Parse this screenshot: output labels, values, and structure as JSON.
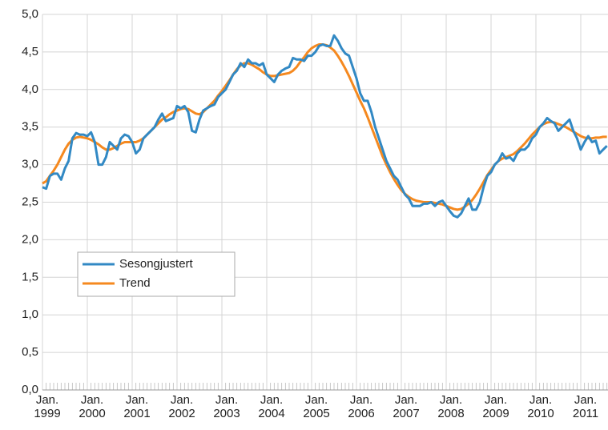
{
  "chart_data": {
    "type": "line",
    "categories": [
      "Jan.\n1999",
      null,
      null,
      null,
      null,
      null,
      null,
      null,
      null,
      null,
      null,
      null,
      "Jan.\n2000",
      null,
      null,
      null,
      null,
      null,
      null,
      null,
      null,
      null,
      null,
      null,
      "Jan.\n2001",
      null,
      null,
      null,
      null,
      null,
      null,
      null,
      null,
      null,
      null,
      null,
      "Jan.\n2002",
      null,
      null,
      null,
      null,
      null,
      null,
      null,
      null,
      null,
      null,
      null,
      "Jan.\n2003",
      null,
      null,
      null,
      null,
      null,
      null,
      null,
      null,
      null,
      null,
      null,
      "Jan.\n2004",
      null,
      null,
      null,
      null,
      null,
      null,
      null,
      null,
      null,
      null,
      null,
      "Jan.\n2005",
      null,
      null,
      null,
      null,
      null,
      null,
      null,
      null,
      null,
      null,
      null,
      "Jan.\n2006",
      null,
      null,
      null,
      null,
      null,
      null,
      null,
      null,
      null,
      null,
      null,
      "Jan.\n2007",
      null,
      null,
      null,
      null,
      null,
      null,
      null,
      null,
      null,
      null,
      null,
      "Jan.\n2008",
      null,
      null,
      null,
      null,
      null,
      null,
      null,
      null,
      null,
      null,
      null,
      "Jan.\n2009",
      null,
      null,
      null,
      null,
      null,
      null,
      null,
      null,
      null,
      null,
      null,
      "Jan.\n2010",
      null,
      null,
      null,
      null,
      null,
      null,
      null,
      null,
      null,
      null,
      null,
      "Jan.\n2011",
      null,
      null,
      null,
      null,
      null,
      null,
      null
    ],
    "series": [
      {
        "name": "Sesongjustert",
        "color": "#3289c4",
        "values": [
          2.7,
          2.68,
          2.85,
          2.88,
          2.88,
          2.8,
          2.95,
          3.05,
          3.35,
          3.42,
          3.4,
          3.4,
          3.38,
          3.43,
          3.3,
          3.0,
          3.0,
          3.1,
          3.3,
          3.25,
          3.2,
          3.35,
          3.4,
          3.38,
          3.3,
          3.15,
          3.2,
          3.35,
          3.4,
          3.45,
          3.5,
          3.6,
          3.68,
          3.58,
          3.6,
          3.62,
          3.78,
          3.75,
          3.78,
          3.7,
          3.45,
          3.43,
          3.6,
          3.72,
          3.75,
          3.78,
          3.8,
          3.9,
          3.95,
          4.0,
          4.1,
          4.2,
          4.25,
          4.35,
          4.3,
          4.4,
          4.35,
          4.35,
          4.32,
          4.35,
          4.2,
          4.15,
          4.1,
          4.2,
          4.25,
          4.28,
          4.3,
          4.42,
          4.4,
          4.4,
          4.38,
          4.45,
          4.45,
          4.5,
          4.58,
          4.6,
          4.58,
          4.58,
          4.72,
          4.65,
          4.55,
          4.48,
          4.45,
          4.3,
          4.15,
          3.95,
          3.85,
          3.85,
          3.7,
          3.5,
          3.35,
          3.2,
          3.05,
          2.95,
          2.85,
          2.8,
          2.7,
          2.6,
          2.55,
          2.45,
          2.45,
          2.45,
          2.48,
          2.48,
          2.5,
          2.45,
          2.5,
          2.52,
          2.45,
          2.38,
          2.32,
          2.3,
          2.35,
          2.45,
          2.55,
          2.4,
          2.4,
          2.5,
          2.7,
          2.85,
          2.9,
          3.0,
          3.05,
          3.15,
          3.08,
          3.1,
          3.05,
          3.15,
          3.2,
          3.2,
          3.25,
          3.35,
          3.4,
          3.5,
          3.55,
          3.62,
          3.58,
          3.55,
          3.45,
          3.5,
          3.55,
          3.6,
          3.45,
          3.35,
          3.2,
          3.3,
          3.38,
          3.3,
          3.32,
          3.15,
          3.2,
          3.25
        ]
      },
      {
        "name": "Trend",
        "color": "#f5891f",
        "values": [
          2.75,
          2.78,
          2.85,
          2.92,
          3.0,
          3.1,
          3.2,
          3.28,
          3.33,
          3.36,
          3.37,
          3.36,
          3.35,
          3.33,
          3.3,
          3.27,
          3.23,
          3.2,
          3.2,
          3.22,
          3.25,
          3.28,
          3.3,
          3.3,
          3.3,
          3.3,
          3.32,
          3.35,
          3.4,
          3.45,
          3.5,
          3.55,
          3.6,
          3.63,
          3.67,
          3.7,
          3.72,
          3.74,
          3.75,
          3.74,
          3.71,
          3.68,
          3.67,
          3.7,
          3.75,
          3.8,
          3.85,
          3.92,
          3.98,
          4.05,
          4.12,
          4.2,
          4.27,
          4.32,
          4.35,
          4.35,
          4.33,
          4.3,
          4.27,
          4.23,
          4.2,
          4.18,
          4.18,
          4.19,
          4.2,
          4.21,
          4.22,
          4.25,
          4.3,
          4.37,
          4.43,
          4.5,
          4.55,
          4.58,
          4.6,
          4.6,
          4.59,
          4.56,
          4.52,
          4.45,
          4.37,
          4.28,
          4.18,
          4.07,
          3.96,
          3.85,
          3.75,
          3.63,
          3.5,
          3.37,
          3.24,
          3.11,
          3.0,
          2.9,
          2.81,
          2.73,
          2.66,
          2.61,
          2.57,
          2.54,
          2.52,
          2.51,
          2.5,
          2.5,
          2.5,
          2.49,
          2.48,
          2.47,
          2.45,
          2.43,
          2.41,
          2.4,
          2.41,
          2.44,
          2.48,
          2.53,
          2.6,
          2.68,
          2.77,
          2.86,
          2.93,
          3.0,
          3.05,
          3.08,
          3.1,
          3.12,
          3.14,
          3.18,
          3.23,
          3.28,
          3.34,
          3.4,
          3.45,
          3.5,
          3.54,
          3.56,
          3.57,
          3.56,
          3.54,
          3.52,
          3.5,
          3.47,
          3.44,
          3.41,
          3.38,
          3.36,
          3.35,
          3.35,
          3.36,
          3.36,
          3.37,
          3.37
        ]
      }
    ],
    "ylim": [
      0,
      5
    ],
    "yticks": [
      {
        "value": 0,
        "label": "0,0"
      },
      {
        "value": 0.5,
        "label": "0,5"
      },
      {
        "value": 1,
        "label": "1,0"
      },
      {
        "value": 1.5,
        "label": "1,5"
      },
      {
        "value": 2,
        "label": "2,0"
      },
      {
        "value": 2.5,
        "label": "2,5"
      },
      {
        "value": 3,
        "label": "3,0"
      },
      {
        "value": 3.5,
        "label": "3,5"
      },
      {
        "value": 4,
        "label": "4,0"
      },
      {
        "value": 4.5,
        "label": "4,5"
      },
      {
        "value": 5,
        "label": "5,0"
      }
    ],
    "grid": true,
    "legend": "lower-left"
  }
}
